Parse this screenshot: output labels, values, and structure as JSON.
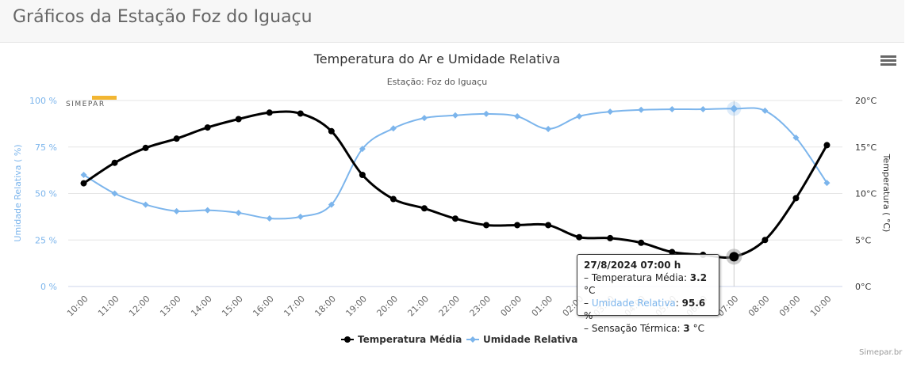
{
  "page": {
    "title": "Gráficos da Estação Foz do Iguaçu",
    "credit": "Simepar.br",
    "logo_text": "SIMEPAR",
    "menu_icon": "hamburger-menu-icon"
  },
  "tooltip": {
    "header": "27/8/2024 07:00 h",
    "rows": [
      {
        "label": "Temperatura Média",
        "value": "3.2",
        "unit": "°C"
      },
      {
        "label": "Umidade Relativa",
        "value": "95.6",
        "unit": "%"
      },
      {
        "label": "Sensação Térmica",
        "value": "3",
        "unit": "°C"
      }
    ]
  },
  "chart_data": {
    "type": "line",
    "title": "Temperatura do Ar e Umidade Relativa",
    "subtitle": "Estação: Foz do Iguaçu",
    "categories": [
      "10:00",
      "11:00",
      "12:00",
      "13:00",
      "14:00",
      "15:00",
      "16:00",
      "17:00",
      "18:00",
      "19:00",
      "20:00",
      "21:00",
      "22:00",
      "23:00",
      "00:00",
      "01:00",
      "02:00",
      "03:00",
      "04:00",
      "05:00",
      "06:00",
      "07:00",
      "08:00",
      "09:00",
      "10:00"
    ],
    "xlabel": "",
    "y_left": {
      "label": "Umidade Relativa ( %)",
      "range": [
        0,
        100
      ],
      "ticks": [
        "0 %",
        "25 %",
        "50 %",
        "75 %",
        "100 %"
      ],
      "tick_values": [
        0,
        25,
        50,
        75,
        100
      ],
      "color": "#7cb5ec"
    },
    "y_right": {
      "label": "Temperatura ( °C)",
      "range": [
        0,
        20
      ],
      "ticks": [
        "0°C",
        "5°C",
        "10°C",
        "15°C",
        "20°C"
      ],
      "tick_values": [
        0,
        5,
        10,
        15,
        20
      ],
      "color": "#333333"
    },
    "grid": true,
    "legend_position": "bottom-center",
    "highlight_index": 21,
    "series": [
      {
        "name": "Temperatura Média",
        "axis": "right",
        "color": "#000000",
        "marker": "circle",
        "values": [
          11.1,
          13.3,
          14.9,
          15.9,
          17.1,
          18.0,
          18.7,
          18.6,
          16.7,
          12.0,
          9.4,
          8.4,
          7.3,
          6.6,
          6.6,
          6.6,
          5.3,
          5.2,
          4.7,
          3.7,
          3.4,
          3.2,
          5.0,
          9.5,
          15.2
        ]
      },
      {
        "name": "Umidade Relativa",
        "axis": "left",
        "color": "#7cb5ec",
        "marker": "diamond",
        "values": [
          60,
          50,
          44,
          40.5,
          41,
          39.6,
          36.6,
          37.5,
          44,
          74,
          85,
          90.6,
          92,
          92.8,
          91.5,
          84.7,
          91.5,
          94,
          95,
          95.3,
          95.3,
          95.6,
          94.5,
          80,
          55.7
        ]
      }
    ]
  }
}
